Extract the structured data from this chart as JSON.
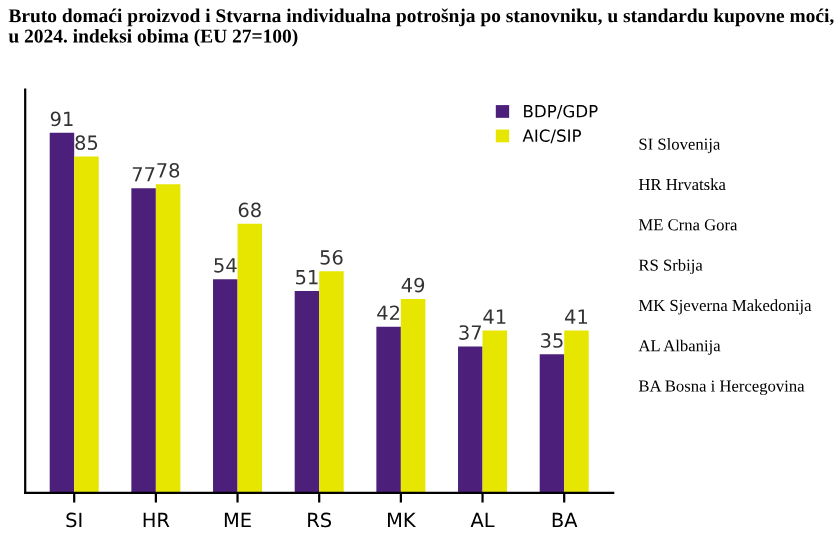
{
  "chart_data": {
    "type": "bar",
    "title": "Bruto domaći proizvod i Stvarna individualna potrošnja po stanovniku, u standardu kupovne moći, u 2024. indeksi obima (EU 27=100)",
    "categories": [
      "SI",
      "HR",
      "ME",
      "RS",
      "MK",
      "AL",
      "BA"
    ],
    "series": [
      {
        "name": "BDP/GDP",
        "color": "#4b1f7a",
        "values": [
          91,
          77,
          54,
          51,
          42,
          37,
          35
        ]
      },
      {
        "name": "AIC/SIP",
        "color": "#e6e600",
        "values": [
          85,
          78,
          68,
          56,
          49,
          41,
          41
        ]
      }
    ],
    "data_labels": true,
    "legend": "top right",
    "grid": false,
    "annotations": [
      "SI Slovenija",
      "HR Hrvatska",
      "ME Crna Gora",
      "RS Srbija",
      "MK Sjeverna Makedonija",
      "AL Albanija",
      "BA Bosna i Hercegovina"
    ]
  }
}
